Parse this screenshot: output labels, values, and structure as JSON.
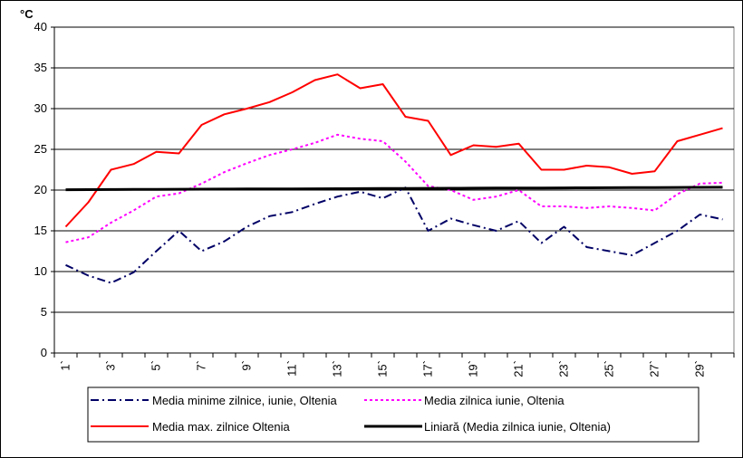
{
  "chart_data": {
    "type": "line",
    "title": "",
    "xlabel": "",
    "ylabel": "°C",
    "ylim": [
      0,
      40
    ],
    "y_ticks": [
      "0",
      "5",
      "10",
      "15",
      "20",
      "25",
      "30",
      "35",
      "40"
    ],
    "x": [
      1,
      2,
      3,
      4,
      5,
      6,
      7,
      8,
      9,
      10,
      11,
      12,
      13,
      14,
      15,
      16,
      17,
      18,
      19,
      20,
      21,
      22,
      23,
      24,
      25,
      26,
      27,
      28,
      29,
      30
    ],
    "x_tick_labels": [
      "1`",
      "3`",
      "5`",
      "7`",
      "9`",
      "11`",
      "13`",
      "15`",
      "17`",
      "19`",
      "21`",
      "23`",
      "25`",
      "27`",
      "29`"
    ],
    "grid": "horizontal",
    "legend_position": "bottom",
    "series": [
      {
        "name": "Media minime zilnice, iunie, Oltenia",
        "color": "#000066",
        "style": "dash-dot",
        "values": [
          10.8,
          9.5,
          8.6,
          9.9,
          12.5,
          15.0,
          12.5,
          13.7,
          15.5,
          16.8,
          17.3,
          18.3,
          19.2,
          19.8,
          19.0,
          20.3,
          15.0,
          16.5,
          15.7,
          15.0,
          16.2,
          13.5,
          15.5,
          13.0,
          12.5,
          12.0,
          13.5,
          15.0,
          17.0,
          16.4
        ]
      },
      {
        "name": "Media zilnica iunie, Oltenia",
        "color": "#ff00ff",
        "style": "dotted",
        "values": [
          13.6,
          14.2,
          16.0,
          17.5,
          19.2,
          19.6,
          20.8,
          22.2,
          23.3,
          24.3,
          25.0,
          25.8,
          26.8,
          26.3,
          26.0,
          23.5,
          20.5,
          20.0,
          18.8,
          19.2,
          20.0,
          18.0,
          18.0,
          17.8,
          18.0,
          17.8,
          17.5,
          19.5,
          20.8,
          20.9
        ]
      },
      {
        "name": "Media max. zilnice Oltenia",
        "color": "#ff0000",
        "style": "solid",
        "values": [
          15.5,
          18.5,
          22.5,
          23.2,
          24.7,
          24.5,
          28.0,
          29.3,
          30.0,
          30.8,
          32.0,
          33.5,
          34.2,
          32.5,
          33.0,
          29.0,
          28.5,
          24.3,
          25.5,
          25.3,
          25.7,
          22.5,
          22.5,
          23.0,
          22.8,
          22.0,
          22.3,
          26.0,
          26.8,
          27.6
        ]
      },
      {
        "name": "Liniară (Media zilnica iunie, Oltenia)",
        "color": "#000000",
        "style": "solid-thick",
        "values": [
          20.05,
          20.06,
          20.07,
          20.08,
          20.09,
          20.1,
          20.11,
          20.12,
          20.13,
          20.14,
          20.15,
          20.16,
          20.17,
          20.18,
          20.19,
          20.2,
          20.21,
          20.22,
          20.23,
          20.24,
          20.25,
          20.26,
          20.27,
          20.28,
          20.29,
          20.3,
          20.31,
          20.32,
          20.33,
          20.34
        ]
      }
    ]
  }
}
